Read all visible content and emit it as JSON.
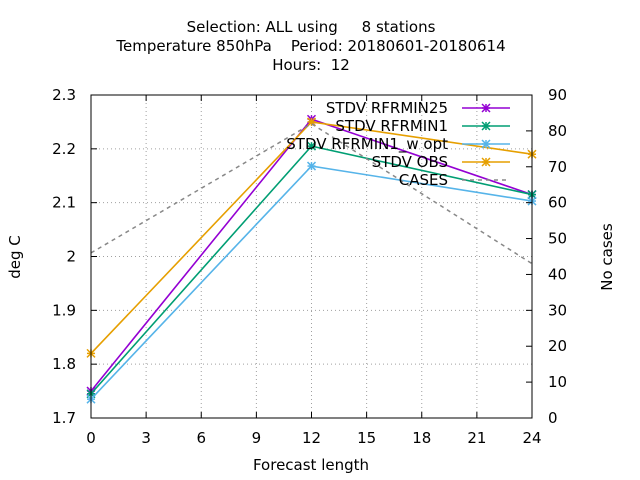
{
  "chart_data": {
    "type": "line",
    "title_lines": [
      "Selection: ALL using     8 stations",
      "Temperature 850hPa    Period: 20180601-20180614",
      "Hours:  12"
    ],
    "xlabel": "Forecast length",
    "ylabel": "deg C",
    "y2label": "No cases",
    "xlim": [
      0,
      24
    ],
    "ylim": [
      1.7,
      2.3
    ],
    "y2lim": [
      0,
      90
    ],
    "x_ticks": [
      0,
      3,
      6,
      9,
      12,
      15,
      18,
      21,
      24
    ],
    "y_ticks": [
      1.7,
      1.8,
      1.9,
      2.0,
      2.1,
      2.2,
      2.3
    ],
    "y_tick_labels": [
      "1.7",
      "1.8",
      "1.9",
      "2",
      "2.1",
      "2.2",
      "2.3"
    ],
    "y2_ticks": [
      0,
      10,
      20,
      30,
      40,
      50,
      60,
      70,
      80,
      90
    ],
    "grid": true,
    "legend_position": "top-right",
    "x": [
      0,
      12,
      24
    ],
    "series": [
      {
        "name": "STDV RFRMIN25",
        "color": "#9400d3",
        "axis": "y",
        "dash": false,
        "marker": true,
        "values": [
          1.75,
          2.255,
          2.115
        ]
      },
      {
        "name": "STDV RFRMIN1",
        "color": "#009e73",
        "axis": "y",
        "dash": false,
        "marker": true,
        "values": [
          1.745,
          2.205,
          2.115
        ]
      },
      {
        "name": "STDV RFRMIN1_w opt",
        "color": "#56b4e9",
        "axis": "y",
        "dash": false,
        "marker": true,
        "values": [
          1.735,
          2.168,
          2.103
        ]
      },
      {
        "name": "STDV OBS",
        "color": "#e69f00",
        "axis": "y",
        "dash": false,
        "marker": true,
        "values": [
          1.82,
          2.25,
          2.19
        ]
      },
      {
        "name": "CASES",
        "color": "#888888",
        "axis": "y2",
        "dash": true,
        "marker": false,
        "values": [
          46,
          82,
          43
        ]
      }
    ]
  }
}
